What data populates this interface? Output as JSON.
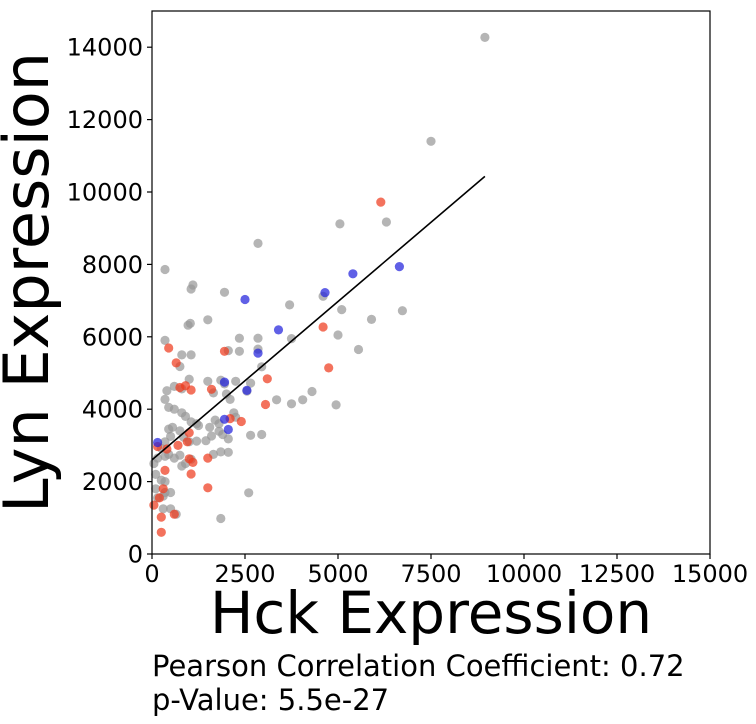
{
  "chart_data": {
    "type": "scatter",
    "xlabel": "Hck Expression",
    "ylabel": "Lyn Expression",
    "xlim": [
      0,
      15000
    ],
    "ylim": [
      0,
      15000
    ],
    "x_ticks": [
      0,
      2500,
      5000,
      7500,
      10000,
      12500,
      15000
    ],
    "y_ticks": [
      0,
      2000,
      4000,
      6000,
      8000,
      10000,
      12000,
      14000
    ],
    "grid": false,
    "legend": "none",
    "colors": {
      "gray": "#999999",
      "red": "#ee3b1e",
      "blue": "#2222dd",
      "line": "#000000"
    },
    "fit_line": {
      "x": [
        0,
        8950
      ],
      "y": [
        2600,
        10430
      ]
    },
    "series": [
      {
        "color": "gray",
        "points": [
          [
            8950,
            14270
          ],
          [
            7500,
            11400
          ],
          [
            6300,
            9170
          ],
          [
            5050,
            9120
          ],
          [
            2850,
            8580
          ],
          [
            6730,
            6720
          ],
          [
            5100,
            6750
          ],
          [
            4600,
            7120
          ],
          [
            3700,
            6880
          ],
          [
            5900,
            6480
          ],
          [
            5000,
            6050
          ],
          [
            5550,
            5650
          ],
          [
            3750,
            5950
          ],
          [
            1100,
            7430
          ],
          [
            1050,
            7320
          ],
          [
            1950,
            7230
          ],
          [
            350,
            7860
          ],
          [
            1500,
            6470
          ],
          [
            1030,
            6370
          ],
          [
            970,
            6320
          ],
          [
            2850,
            5960
          ],
          [
            2350,
            5960
          ],
          [
            350,
            5900
          ],
          [
            2050,
            5620
          ],
          [
            2350,
            5600
          ],
          [
            2850,
            5660
          ],
          [
            2950,
            5170
          ],
          [
            800,
            5500
          ],
          [
            1050,
            5500
          ],
          [
            750,
            5180
          ],
          [
            1000,
            4830
          ],
          [
            600,
            4630
          ],
          [
            800,
            4560
          ],
          [
            400,
            4510
          ],
          [
            350,
            4270
          ],
          [
            450,
            4050
          ],
          [
            600,
            4000
          ],
          [
            800,
            3900
          ],
          [
            1500,
            4770
          ],
          [
            1850,
            4800
          ],
          [
            1950,
            4700
          ],
          [
            2250,
            4770
          ],
          [
            2650,
            4720
          ],
          [
            2550,
            4500
          ],
          [
            2000,
            4420
          ],
          [
            1650,
            4450
          ],
          [
            2100,
            4270
          ],
          [
            2200,
            3900
          ],
          [
            2250,
            3780
          ],
          [
            1700,
            3700
          ],
          [
            1250,
            3550
          ],
          [
            900,
            3800
          ],
          [
            1050,
            3650
          ],
          [
            1200,
            3600
          ],
          [
            1550,
            3500
          ],
          [
            1800,
            3600
          ],
          [
            1800,
            3390
          ],
          [
            1600,
            3260
          ],
          [
            1200,
            3120
          ],
          [
            1000,
            3100
          ],
          [
            850,
            3230
          ],
          [
            750,
            3400
          ],
          [
            550,
            3500
          ],
          [
            500,
            3250
          ],
          [
            350,
            3100
          ],
          [
            450,
            3450
          ],
          [
            1450,
            3130
          ],
          [
            1900,
            3300
          ],
          [
            2050,
            3180
          ],
          [
            2650,
            3280
          ],
          [
            2950,
            3300
          ],
          [
            3350,
            4260
          ],
          [
            3750,
            4150
          ],
          [
            4050,
            4260
          ],
          [
            4300,
            4490
          ],
          [
            4950,
            4120
          ],
          [
            1850,
            2820
          ],
          [
            2050,
            2810
          ],
          [
            1650,
            2750
          ],
          [
            1050,
            2620
          ],
          [
            900,
            2500
          ],
          [
            800,
            2430
          ],
          [
            600,
            2650
          ],
          [
            750,
            2730
          ],
          [
            450,
            2750
          ],
          [
            250,
            2920
          ],
          [
            350,
            2700
          ],
          [
            150,
            2650
          ],
          [
            50,
            2500
          ],
          [
            100,
            2200
          ],
          [
            350,
            2000
          ],
          [
            250,
            2040
          ],
          [
            100,
            1800
          ],
          [
            350,
            1700
          ],
          [
            500,
            1700
          ],
          [
            300,
            1600
          ],
          [
            150,
            1550
          ],
          [
            300,
            1250
          ],
          [
            500,
            1250
          ],
          [
            650,
            1100
          ],
          [
            1850,
            980
          ],
          [
            2600,
            1690
          ]
        ]
      },
      {
        "color": "red",
        "points": [
          [
            6150,
            9720
          ],
          [
            4600,
            6270
          ],
          [
            4750,
            5140
          ],
          [
            3100,
            4840
          ],
          [
            3050,
            4130
          ],
          [
            2400,
            3660
          ],
          [
            2100,
            3740
          ],
          [
            1950,
            5600
          ],
          [
            1600,
            4550
          ],
          [
            1050,
            4530
          ],
          [
            900,
            4650
          ],
          [
            750,
            4600
          ],
          [
            650,
            5280
          ],
          [
            450,
            5690
          ],
          [
            1000,
            3350
          ],
          [
            950,
            3100
          ],
          [
            700,
            3000
          ],
          [
            400,
            2900
          ],
          [
            350,
            2310
          ],
          [
            1000,
            2630
          ],
          [
            1100,
            2530
          ],
          [
            1050,
            2210
          ],
          [
            1500,
            2650
          ],
          [
            1500,
            1830
          ],
          [
            300,
            1800
          ],
          [
            200,
            1550
          ],
          [
            50,
            1350
          ],
          [
            600,
            1100
          ],
          [
            250,
            1020
          ],
          [
            250,
            600
          ],
          [
            150,
            2970
          ]
        ]
      },
      {
        "color": "blue",
        "points": [
          [
            6650,
            7940
          ],
          [
            5400,
            7740
          ],
          [
            4650,
            7220
          ],
          [
            2500,
            7030
          ],
          [
            3400,
            6190
          ],
          [
            2850,
            5550
          ],
          [
            2550,
            4520
          ],
          [
            1950,
            4750
          ],
          [
            1950,
            3720
          ],
          [
            2050,
            3440
          ],
          [
            150,
            3080
          ]
        ]
      }
    ],
    "annotations": [
      "Pearson Correlation Coefficient: 0.72",
      "p-Value: 5.5e-27"
    ]
  }
}
